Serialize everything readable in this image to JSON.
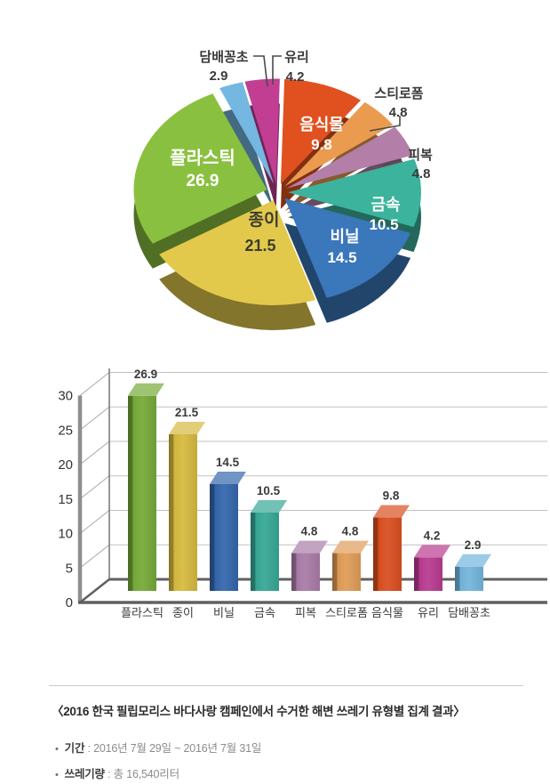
{
  "page": {
    "title": "〈2016 한국 필립모리스 바다사랑 캠페인에서 수거한 해변 쓰레기 유형별 집계 결과〉",
    "notes": [
      {
        "label": "기간",
        "separator": " : ",
        "value": "2016년 7월 29일 ~ 2016년 7월 31일"
      },
      {
        "label": "쓰레기량",
        "separator": " : ",
        "value": "총 16,540리터"
      }
    ]
  },
  "chart_data": [
    {
      "type": "pie",
      "effect": "3d-exploded",
      "unit": "percent",
      "categories": [
        "담배꽁초",
        "유리",
        "음식물",
        "스티로폼",
        "피복",
        "금속",
        "비닐",
        "종이",
        "플라스틱"
      ],
      "values": [
        2.9,
        4.2,
        9.8,
        4.8,
        4.8,
        10.5,
        14.5,
        21.5,
        26.9
      ],
      "colors": [
        "#74b7e0",
        "#c13e93",
        "#e0511f",
        "#eb9b50",
        "#b37ea8",
        "#3cb39c",
        "#3a77bb",
        "#e3c94b",
        "#8ac03f"
      ],
      "label_styles": [
        "external",
        "external",
        "internal-white",
        "external",
        "external",
        "internal-white",
        "internal-white",
        "internal-dark",
        "internal-white"
      ],
      "legend_position": "none"
    },
    {
      "type": "bar",
      "effect": "3d",
      "categories": [
        "플라스틱",
        "종이",
        "비닐",
        "금속",
        "피복",
        "스티로폼",
        "음식물",
        "유리",
        "담배꽁초"
      ],
      "values": [
        26.9,
        21.5,
        14.5,
        10.5,
        4.8,
        4.8,
        9.8,
        4.2,
        2.9
      ],
      "colors": [
        "#75a937",
        "#d5b93e",
        "#3366ab",
        "#36a795",
        "#a87ba7",
        "#df9b56",
        "#d94e1f",
        "#b93a90",
        "#72b5dc"
      ],
      "ylim": [
        0,
        30
      ],
      "yticks": [
        0,
        5,
        10,
        15,
        20,
        25,
        30
      ],
      "grid": true,
      "legend_position": "none",
      "xlabel": "",
      "ylabel": ""
    }
  ]
}
